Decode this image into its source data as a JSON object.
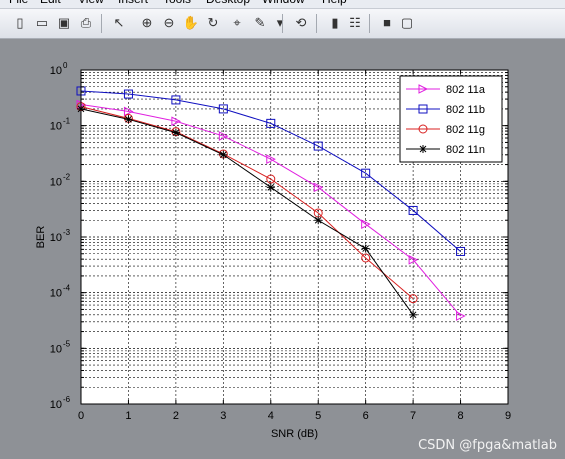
{
  "menu": [
    "File",
    "Edit",
    "View",
    "Insert",
    "Tools",
    "Desktop",
    "Window",
    "Help"
  ],
  "toolbar": {
    "tools": [
      {
        "name": "new-figure-icon",
        "glyph": "▯"
      },
      {
        "name": "open-file-icon",
        "glyph": "▭"
      },
      {
        "name": "save-icon",
        "glyph": "▣"
      },
      {
        "name": "print-icon",
        "glyph": "⎙"
      },
      {
        "name": "edit-pointer-icon",
        "glyph": "↖"
      },
      {
        "name": "zoom-in-icon",
        "glyph": "⊕"
      },
      {
        "name": "zoom-out-icon",
        "glyph": "⊖"
      },
      {
        "name": "pan-icon",
        "glyph": "✋"
      },
      {
        "name": "rotate-3d-icon",
        "glyph": "↻"
      },
      {
        "name": "data-cursor-icon",
        "glyph": "⌖"
      },
      {
        "name": "brush-icon",
        "glyph": "✎"
      },
      {
        "name": "brush-menu-icon",
        "glyph": "▾"
      },
      {
        "name": "link-plot-icon",
        "glyph": "⟲"
      },
      {
        "name": "insert-colorbar-icon",
        "glyph": "▮"
      },
      {
        "name": "insert-legend-icon",
        "glyph": "☷"
      },
      {
        "name": "hide-plot-tools-icon",
        "glyph": "■"
      },
      {
        "name": "show-plot-tools-icon",
        "glyph": "▢"
      }
    ]
  },
  "watermark": "CSDN @fpga&matlab",
  "colors": {
    "background": "#8e9196",
    "axes_background": "#ffffff",
    "series_a": "#e020e0",
    "series_b": "#1010c0",
    "series_g": "#d82020",
    "series_n": "#000000"
  },
  "chart_data": {
    "type": "line",
    "xlabel": "SNR (dB)",
    "ylabel": "BER",
    "xlim": [
      0,
      9
    ],
    "ylim": [
      1e-06,
      1
    ],
    "yscale": "log",
    "grid": true,
    "legend_position": "top-right",
    "x_ticks": [
      "0",
      "1",
      "2",
      "3",
      "4",
      "5",
      "6",
      "7",
      "8",
      "9"
    ],
    "y_ticks": [
      {
        "base": "10",
        "exp": "0"
      },
      {
        "base": "10",
        "exp": "-1"
      },
      {
        "base": "10",
        "exp": "-2"
      },
      {
        "base": "10",
        "exp": "-3"
      },
      {
        "base": "10",
        "exp": "-4"
      },
      {
        "base": "10",
        "exp": "-5"
      },
      {
        "base": "10",
        "exp": "-6"
      }
    ],
    "series": [
      {
        "name": "802 11a",
        "marker": "triangle-right",
        "color": "#e020e0",
        "x": [
          0,
          1,
          2,
          3,
          4,
          5,
          6,
          7,
          8
        ],
        "y": [
          0.24,
          0.18,
          0.12,
          0.065,
          0.025,
          0.0078,
          0.0017,
          0.00039,
          3.8e-05
        ]
      },
      {
        "name": "802 11b",
        "marker": "square",
        "color": "#1010c0",
        "x": [
          0,
          1,
          2,
          3,
          4,
          5,
          6,
          7,
          8
        ],
        "y": [
          0.42,
          0.37,
          0.29,
          0.2,
          0.11,
          0.043,
          0.014,
          0.003,
          0.00055
        ]
      },
      {
        "name": "802 11g",
        "marker": "circle",
        "color": "#d82020",
        "x": [
          0,
          1,
          2,
          3,
          4,
          5,
          6,
          7
        ],
        "y": [
          0.22,
          0.135,
          0.078,
          0.031,
          0.011,
          0.0027,
          0.00042,
          7.8e-05
        ]
      },
      {
        "name": "802 11n",
        "marker": "asterisk",
        "color": "#000000",
        "x": [
          0,
          1,
          2,
          3,
          4,
          5,
          6,
          7
        ],
        "y": [
          0.2,
          0.13,
          0.075,
          0.03,
          0.0078,
          0.002,
          0.00062,
          4e-05
        ]
      }
    ]
  }
}
